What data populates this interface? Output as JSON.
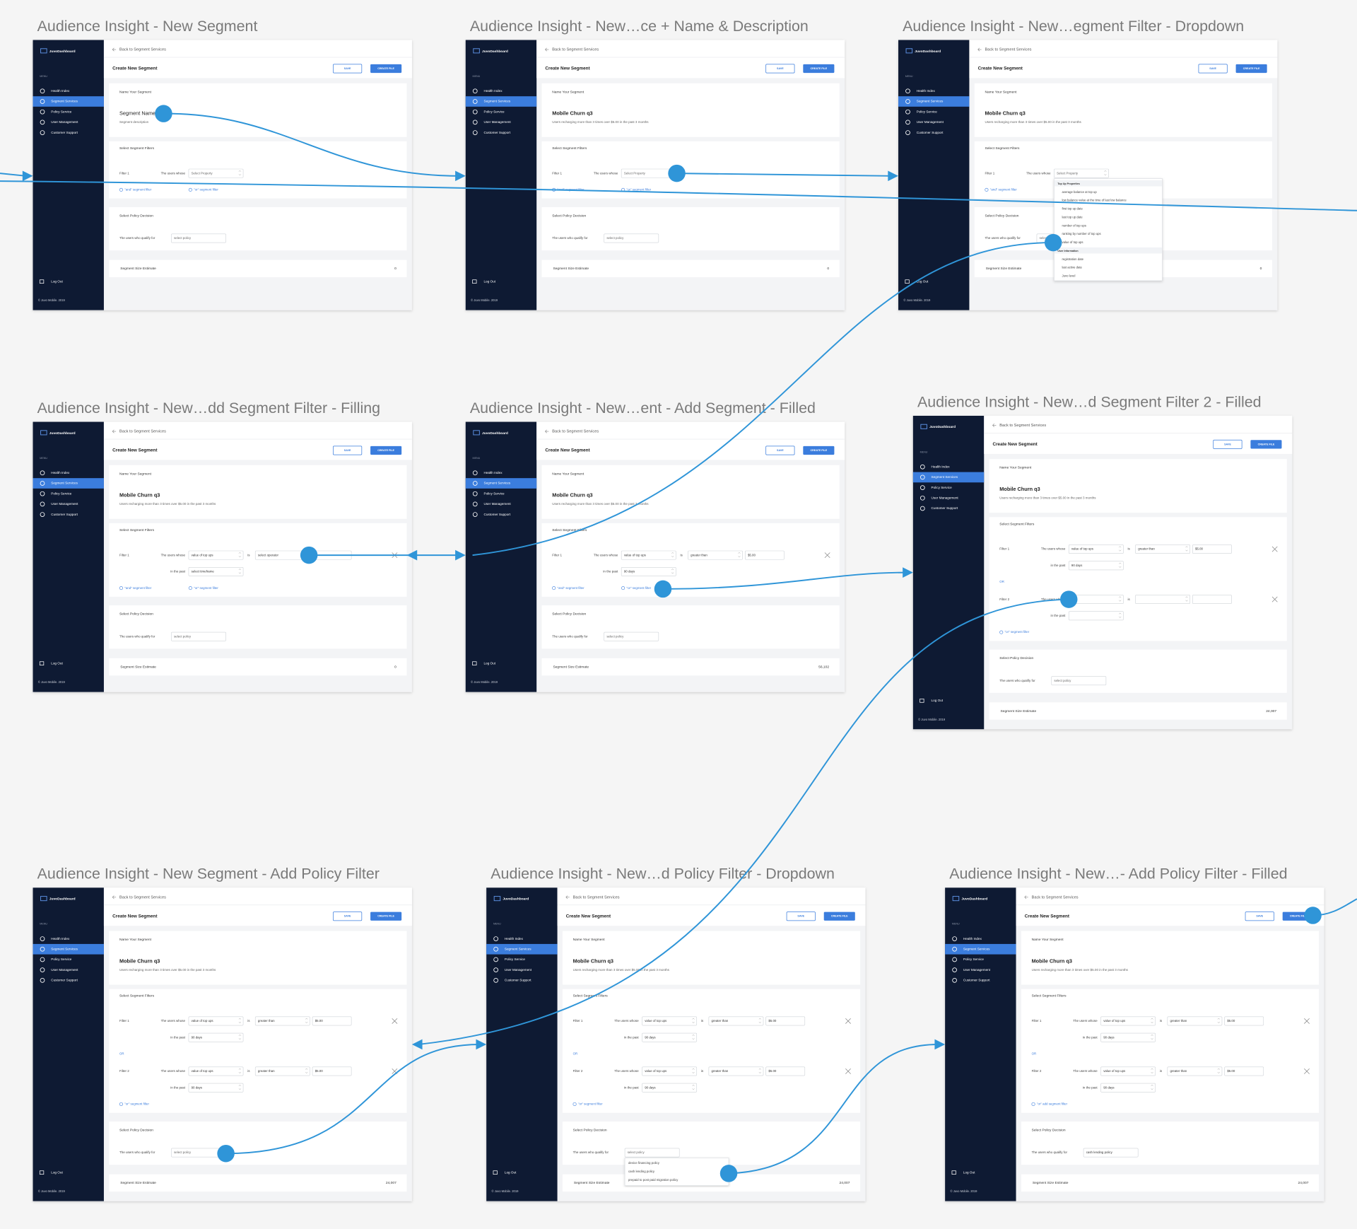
{
  "app": {
    "logo": "JuvoDashboard",
    "menu_label": "MENU",
    "menu": [
      "Health Index",
      "Segment Services",
      "Policy Service",
      "User Management",
      "Customer Support"
    ],
    "logout": "Log Out",
    "footer": "© Juvo Mobile. 2019",
    "back": "Back to Segment Services",
    "page_title": "Create New Segment",
    "save": "SAVE",
    "create": "CREATE FILE",
    "name_section": "Name Your Segment",
    "filters_section": "Select Segment Filters",
    "policy_section": "Select Policy Decision",
    "users_whose": "The users whose",
    "is": "is",
    "in_past": "in the past",
    "or": "OR",
    "qualify": "The users who qualify for",
    "estimate_label": "Segment Size Estimate"
  },
  "frames": [
    {
      "title": "Audience Insight - New Segment",
      "name": "Segment Name",
      "description": "Segment description",
      "filters": [
        {
          "label": "Filter 1",
          "property": "Select Property"
        }
      ],
      "links": [
        "\"and\" segment filter",
        "\"or\" segment filter"
      ],
      "policy": "select policy",
      "estimate": "0"
    },
    {
      "title": "Audience Insight  - New…ce + Name & Description",
      "name": "Mobile Churn q3",
      "description": "Users recharging more than 3 times over $5.00 in the past 3 months",
      "filters": [
        {
          "label": "Filter 1",
          "property": "Select Property"
        }
      ],
      "links": [
        "\"and\" segment filter",
        "\"or\" segment filter"
      ],
      "policy": "select policy",
      "estimate": "0"
    },
    {
      "title": "Audience Insight - New…egment Filter - Dropdown",
      "name": "Mobile Churn q3",
      "description": "Users recharging more than 3 times over $5.00 in the past 3 months",
      "filters": [
        {
          "label": "Filter 1",
          "property": "Select Property"
        }
      ],
      "links": [
        "\"and\" segment filter",
        "\"or\" segment filter"
      ],
      "property_options": [
        {
          "group": "Top Up Properties",
          "items": [
            "average balance at top up",
            "low balance value at the time of last low balance",
            "first top up date",
            "last top up date",
            "number of top ups",
            "ranking by number of top ups",
            "value of top ups"
          ]
        },
        {
          "group": "User Information",
          "items": [
            "registration date",
            "last active date",
            "Juvo level"
          ]
        }
      ],
      "policy": "select policy",
      "estimate": "0"
    },
    {
      "title": "Audience Insight - New…dd Segment Filter - Filling",
      "name": "Mobile Churn q3",
      "description": "Users recharging more than 3 times over $5.00 in the past 3 months",
      "filters": [
        {
          "label": "Filter 1",
          "property": "value of top ups",
          "operator": "select operator",
          "value": null,
          "timeframe": "select timeframe"
        }
      ],
      "links": [
        "\"and\" segment filter",
        "\"or\" segment filter"
      ],
      "policy": "select policy",
      "estimate": "0"
    },
    {
      "title": "Audience Insight - New…ent - Add Segment - Filled",
      "name": "Mobile Churn q3",
      "description": "Users recharging more than 3 times over $5.00 in the past 3 months",
      "filters": [
        {
          "label": "Filter 1",
          "property": "value of top ups",
          "operator": "greater than",
          "value": "$5.00",
          "timeframe": "90 days"
        }
      ],
      "links": [
        "\"and\" segment filter",
        "\"or\" segment filter"
      ],
      "policy": "select policy",
      "estimate": "56,102"
    },
    {
      "title": "Audience Insight - New…d Segment Filter 2 - Filled",
      "name": "Mobile Churn q3",
      "description": "Users recharging more than 3 times over $5.00 in the past 3 months",
      "filters": [
        {
          "label": "Filter 1",
          "property": "value of top ups",
          "operator": "greater than",
          "value": "$5.00",
          "timeframe": "90 days"
        },
        {
          "label": "Filter 2",
          "property": null,
          "operator": null,
          "value": null,
          "timeframe": null
        }
      ],
      "links": [
        "\"or\" segment filter"
      ],
      "policy": "select policy",
      "estimate": "24,007"
    },
    {
      "title": "Audience Insight - New Segment - Add Policy Filter",
      "name": "Mobile Churn q3",
      "description": "Users recharging more than 3 times over $5.00 in the past 3 months",
      "filters": [
        {
          "label": "Filter 1",
          "property": "value of top ups",
          "operator": "greater than",
          "value": "$5.00",
          "timeframe": "90 days"
        },
        {
          "label": "Filter 2",
          "property": "value of top ups",
          "operator": "greater than",
          "value": "$5.00",
          "timeframe": "90 days"
        }
      ],
      "links": [
        "\"or\" segment filter"
      ],
      "policy": "select policy",
      "estimate": "24,007"
    },
    {
      "title": "Audience Insight - New…d Policy Filter - Dropdown",
      "name": "Mobile Churn q3",
      "description": "Users recharging more than 3 times over $5.00 in the past 3 months",
      "filters": [
        {
          "label": "Filter 1",
          "property": "value of top ups",
          "operator": "greater than",
          "value": "$5.00",
          "timeframe": "90 days"
        },
        {
          "label": "Filter 2",
          "property": "value of top ups",
          "operator": "greater than",
          "value": "$5.00",
          "timeframe": "90 days"
        }
      ],
      "links": [
        "\"or\" segment filter"
      ],
      "policy": "select policy",
      "policy_options": [
        "device financing policy",
        "cash lending policy",
        "prepaid to post paid migration policy"
      ],
      "estimate": "24,007"
    },
    {
      "title": "Audience Insight - New…- Add Policy Filter - Filled",
      "name": "Mobile Churn q3",
      "description": "Users recharging more than 3 times over $5.00 in the past 3 months",
      "filters": [
        {
          "label": "Filter 1",
          "property": "value of top ups",
          "operator": "greater than",
          "value": "$5.00",
          "timeframe": "90 days"
        },
        {
          "label": "Filter 2",
          "property": "value of top ups",
          "operator": "greater than",
          "value": "$5.00",
          "timeframe": "90 days"
        }
      ],
      "links": [
        "\"or\" add segment filter"
      ],
      "policy": "cash lending policy",
      "estimate": "24,007"
    }
  ]
}
